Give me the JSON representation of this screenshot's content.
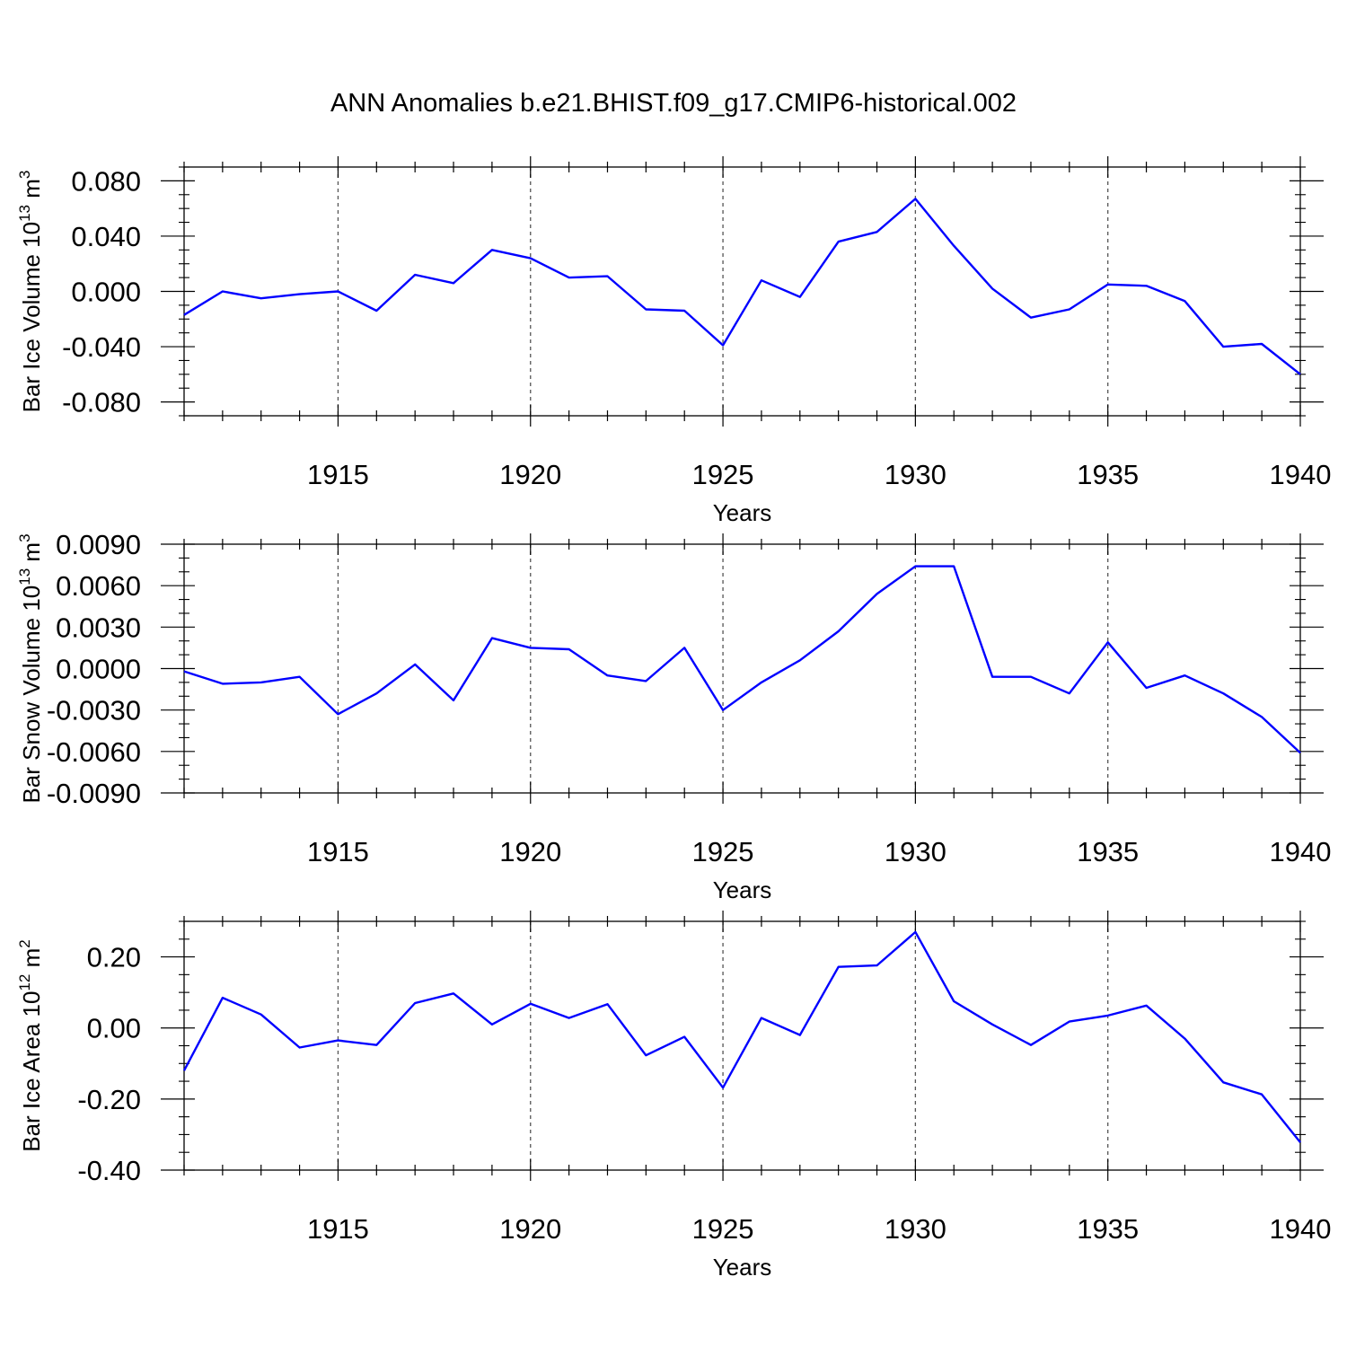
{
  "figure_title": "ANN Anomalies b.e21.BHIST.f09_g17.CMIP6-historical.002",
  "colors": {
    "series": "#0000ff",
    "axis": "#000000",
    "grid": "#555555"
  },
  "chart_data": [
    {
      "type": "line",
      "title": "ANN Anomalies b.e21.BHIST.f09_g17.CMIP6-historical.002",
      "ylabel": {
        "base": "Bar Ice Volume 10",
        "sup1": "13",
        "mid": " m",
        "sup2": "3"
      },
      "xlabel": "Years",
      "xlim": [
        1911,
        1940
      ],
      "ylim": [
        -0.09,
        0.09
      ],
      "yticks": [
        -0.08,
        -0.04,
        0.0,
        0.04,
        0.08
      ],
      "ytick_labels": [
        "-0.080",
        "-0.040",
        "0.000",
        "0.040",
        "0.080"
      ],
      "yminor_step": 0.01,
      "xticks": [
        1915,
        1920,
        1925,
        1930,
        1935,
        1940
      ],
      "xtick_labels": [
        "1915",
        "1920",
        "1925",
        "1930",
        "1935",
        "1940"
      ],
      "grid_x": [
        1915,
        1920,
        1925,
        1930,
        1935
      ],
      "series": [
        {
          "name": "Bar Ice Volume",
          "x": [
            1911,
            1912,
            1913,
            1914,
            1915,
            1916,
            1917,
            1918,
            1919,
            1920,
            1921,
            1922,
            1923,
            1924,
            1925,
            1926,
            1927,
            1928,
            1929,
            1930,
            1931,
            1932,
            1933,
            1934,
            1935,
            1936,
            1937,
            1938,
            1939,
            1940
          ],
          "values": [
            -0.017,
            0.0,
            -0.005,
            -0.002,
            0.0,
            -0.014,
            0.012,
            0.006,
            0.03,
            0.024,
            0.01,
            0.011,
            -0.013,
            -0.014,
            -0.039,
            0.008,
            -0.004,
            0.036,
            0.043,
            0.067,
            0.033,
            0.002,
            -0.019,
            -0.013,
            0.005,
            0.004,
            -0.007,
            -0.04,
            -0.038,
            -0.06
          ]
        }
      ]
    },
    {
      "type": "line",
      "ylabel": {
        "base": "Bar Snow Volume 10",
        "sup1": "13",
        "mid": " m",
        "sup2": "3"
      },
      "xlabel": "Years",
      "xlim": [
        1911,
        1940
      ],
      "ylim": [
        -0.009,
        0.009
      ],
      "yticks": [
        -0.009,
        -0.006,
        -0.003,
        0.0,
        0.003,
        0.006,
        0.009
      ],
      "ytick_labels": [
        "-0.0090",
        "-0.0060",
        "-0.0030",
        "0.0000",
        "0.0030",
        "0.0060",
        "0.0090"
      ],
      "yminor_step": 0.001,
      "xticks": [
        1915,
        1920,
        1925,
        1930,
        1935,
        1940
      ],
      "xtick_labels": [
        "1915",
        "1920",
        "1925",
        "1930",
        "1935",
        "1940"
      ],
      "grid_x": [
        1915,
        1920,
        1925,
        1930,
        1935
      ],
      "series": [
        {
          "name": "Bar Snow Volume",
          "x": [
            1911,
            1912,
            1913,
            1914,
            1915,
            1916,
            1917,
            1918,
            1919,
            1920,
            1921,
            1922,
            1923,
            1924,
            1925,
            1926,
            1927,
            1928,
            1929,
            1930,
            1931,
            1932,
            1933,
            1934,
            1935,
            1936,
            1937,
            1938,
            1939,
            1940
          ],
          "values": [
            -0.0002,
            -0.0011,
            -0.001,
            -0.0006,
            -0.0033,
            -0.0018,
            0.0003,
            -0.0023,
            0.0022,
            0.0015,
            0.0014,
            -0.0005,
            -0.0009,
            0.0015,
            -0.003,
            -0.001,
            0.0006,
            0.0027,
            0.0054,
            0.0074,
            0.0074,
            -0.0006,
            -0.0006,
            -0.0018,
            0.0019,
            -0.0014,
            -0.0005,
            -0.0018,
            -0.0035,
            -0.0061
          ]
        }
      ]
    },
    {
      "type": "line",
      "ylabel": {
        "base": "Bar Ice Area 10",
        "sup1": "12",
        "mid": " m",
        "sup2": "2"
      },
      "xlabel": "Years",
      "xlim": [
        1911,
        1940
      ],
      "ylim": [
        -0.4,
        0.3
      ],
      "yticks": [
        -0.4,
        -0.2,
        0.0,
        0.2
      ],
      "ytick_labels": [
        "-0.40",
        "-0.20",
        "0.00",
        "0.20"
      ],
      "yminor_step": 0.05,
      "xticks": [
        1915,
        1920,
        1925,
        1930,
        1935,
        1940
      ],
      "xtick_labels": [
        "1915",
        "1920",
        "1925",
        "1930",
        "1935",
        "1940"
      ],
      "grid_x": [
        1915,
        1920,
        1925,
        1930,
        1935
      ],
      "series": [
        {
          "name": "Bar Ice Area",
          "x": [
            1911,
            1912,
            1913,
            1914,
            1915,
            1916,
            1917,
            1918,
            1919,
            1920,
            1921,
            1922,
            1923,
            1924,
            1925,
            1926,
            1927,
            1928,
            1929,
            1930,
            1931,
            1932,
            1933,
            1934,
            1935,
            1936,
            1937,
            1938,
            1939,
            1940
          ],
          "values": [
            -0.12,
            0.085,
            0.038,
            -0.055,
            -0.035,
            -0.048,
            0.07,
            0.097,
            0.01,
            0.068,
            0.028,
            0.067,
            -0.077,
            -0.025,
            -0.168,
            0.028,
            -0.02,
            0.172,
            0.176,
            0.27,
            0.075,
            0.01,
            -0.048,
            0.018,
            0.035,
            0.063,
            -0.03,
            -0.153,
            -0.187,
            -0.322
          ]
        }
      ]
    }
  ]
}
